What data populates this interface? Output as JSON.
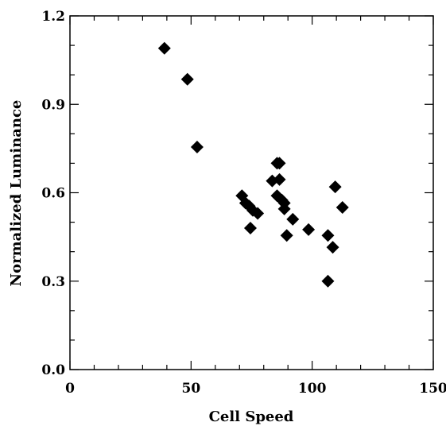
{
  "chart_data": {
    "type": "scatter",
    "title": "",
    "xlabel": "Cell Speed",
    "ylabel": "Normalized Luminance",
    "xlim": [
      0,
      150
    ],
    "ylim": [
      0.0,
      1.2
    ],
    "x_ticks": [
      0,
      50,
      100,
      150
    ],
    "y_ticks": [
      0.0,
      0.3,
      0.6,
      0.9,
      1.2
    ],
    "x_tick_labels": [
      "0",
      "50",
      "100",
      "150"
    ],
    "y_tick_labels": [
      "0.0",
      "0.3",
      "0.6",
      "0.9",
      "1.2"
    ],
    "marker": "diamond",
    "marker_color": "#000000",
    "grid": false,
    "series": [
      {
        "points": [
          {
            "x": 39,
            "y": 1.09
          },
          {
            "x": 48.5,
            "y": 0.985
          },
          {
            "x": 52.5,
            "y": 0.755
          },
          {
            "x": 71,
            "y": 0.59
          },
          {
            "x": 72.5,
            "y": 0.565
          },
          {
            "x": 74,
            "y": 0.555
          },
          {
            "x": 75.5,
            "y": 0.54
          },
          {
            "x": 77.5,
            "y": 0.53
          },
          {
            "x": 74.5,
            "y": 0.48
          },
          {
            "x": 83.5,
            "y": 0.64
          },
          {
            "x": 85.5,
            "y": 0.7
          },
          {
            "x": 86.5,
            "y": 0.7
          },
          {
            "x": 86.5,
            "y": 0.645
          },
          {
            "x": 85.5,
            "y": 0.59
          },
          {
            "x": 87.5,
            "y": 0.575
          },
          {
            "x": 88.5,
            "y": 0.565
          },
          {
            "x": 88.5,
            "y": 0.545
          },
          {
            "x": 92,
            "y": 0.51
          },
          {
            "x": 89.5,
            "y": 0.455
          },
          {
            "x": 98.5,
            "y": 0.475
          },
          {
            "x": 106.5,
            "y": 0.455
          },
          {
            "x": 108.5,
            "y": 0.415
          },
          {
            "x": 109.5,
            "y": 0.62
          },
          {
            "x": 112.5,
            "y": 0.55
          },
          {
            "x": 106.5,
            "y": 0.3
          }
        ]
      }
    ]
  }
}
